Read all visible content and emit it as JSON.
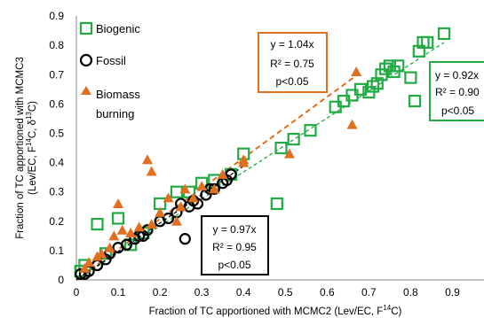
{
  "chart_data": {
    "type": "scatter",
    "xlabel_prefix": "Fraction of TC apportioned with  MCMC2 (Lev/EC, F",
    "xlabel_sup": "14",
    "xlabel_suffix": "C)",
    "ylabel_line1": "Fraction of TC apportioned with MCMC3",
    "ylabel_line2_prefix": "(Lev/EC, F",
    "ylabel_line2_sup1": "14",
    "ylabel_line2_mid": "C, δ",
    "ylabel_line2_sup2": "13",
    "ylabel_line2_suffix": "C)",
    "xlim": [
      0,
      0.97
    ],
    "ylim": [
      0,
      0.9
    ],
    "xticks": [
      "0",
      "0.1",
      "0.2",
      "0.3",
      "0.4",
      "0.5",
      "0.6",
      "0.7",
      "0.8",
      "0.9"
    ],
    "yticks": [
      "0",
      "0.1",
      "0.2",
      "0.3",
      "0.4",
      "0.5",
      "0.6",
      "0.7",
      "0.8",
      "0.9"
    ],
    "legend": [
      "Biogenic",
      "Fossil",
      "Biomass",
      "burning"
    ],
    "series": [
      {
        "name": "Biogenic",
        "color": "#22aa44",
        "marker": "open-square",
        "x": [
          0.01,
          0.02,
          0.05,
          0.07,
          0.1,
          0.13,
          0.16,
          0.2,
          0.24,
          0.27,
          0.3,
          0.33,
          0.37,
          0.4,
          0.48,
          0.49,
          0.52,
          0.56,
          0.62,
          0.64,
          0.66,
          0.68,
          0.7,
          0.71,
          0.72,
          0.73,
          0.74,
          0.75,
          0.76,
          0.77,
          0.8,
          0.81,
          0.82,
          0.83,
          0.84,
          0.88
        ],
        "y": [
          0.03,
          0.05,
          0.19,
          0.09,
          0.21,
          0.12,
          0.16,
          0.26,
          0.3,
          0.3,
          0.33,
          0.34,
          0.36,
          0.43,
          0.26,
          0.45,
          0.48,
          0.51,
          0.59,
          0.61,
          0.63,
          0.65,
          0.64,
          0.66,
          0.67,
          0.7,
          0.72,
          0.73,
          0.71,
          0.73,
          0.69,
          0.61,
          0.78,
          0.81,
          0.81,
          0.84
        ]
      },
      {
        "name": "Fossil",
        "color": "#000000",
        "marker": "open-circle",
        "x": [
          0.01,
          0.02,
          0.03,
          0.05,
          0.07,
          0.08,
          0.1,
          0.12,
          0.14,
          0.15,
          0.16,
          0.17,
          0.2,
          0.22,
          0.24,
          0.25,
          0.26,
          0.27,
          0.28,
          0.29,
          0.31,
          0.32,
          0.33,
          0.35,
          0.36,
          0.37
        ],
        "y": [
          0.02,
          0.02,
          0.03,
          0.05,
          0.07,
          0.09,
          0.11,
          0.12,
          0.14,
          0.15,
          0.15,
          0.17,
          0.2,
          0.21,
          0.23,
          0.26,
          0.14,
          0.25,
          0.27,
          0.26,
          0.29,
          0.31,
          0.31,
          0.33,
          0.34,
          0.36
        ]
      },
      {
        "name": "Biomass burning",
        "color": "#e07020",
        "marker": "triangle",
        "x": [
          0.02,
          0.03,
          0.05,
          0.06,
          0.08,
          0.09,
          0.1,
          0.11,
          0.13,
          0.15,
          0.17,
          0.18,
          0.18,
          0.2,
          0.22,
          0.24,
          0.25,
          0.26,
          0.28,
          0.3,
          0.33,
          0.35,
          0.4,
          0.4,
          0.51,
          0.66,
          0.67
        ],
        "y": [
          0.04,
          0.06,
          0.08,
          0.09,
          0.11,
          0.15,
          0.26,
          0.17,
          0.16,
          0.18,
          0.41,
          0.37,
          0.19,
          0.23,
          0.28,
          0.2,
          0.25,
          0.31,
          0.28,
          0.32,
          0.31,
          0.36,
          0.41,
          0.4,
          0.43,
          0.53,
          0.71
        ]
      }
    ],
    "fits": [
      {
        "series": "Biomass burning",
        "slope": 1.04,
        "color": "#e07020",
        "x_range": [
          0.0,
          0.67
        ],
        "label": [
          "y = 1.04x",
          "R² = 0.75",
          "p<0.05"
        ]
      },
      {
        "series": "Biogenic",
        "slope": 0.92,
        "color": "#22aa44",
        "x_range": [
          0.0,
          0.88
        ],
        "label": [
          "y = 0.92x",
          "R² = 0.90",
          "p<0.05"
        ]
      },
      {
        "series": "Fossil",
        "slope": 0.97,
        "color": "#000000",
        "x_range": [
          0.0,
          0.4
        ],
        "label": [
          "y = 0.97x",
          "R² = 0.95",
          "p<0.05"
        ]
      }
    ]
  }
}
